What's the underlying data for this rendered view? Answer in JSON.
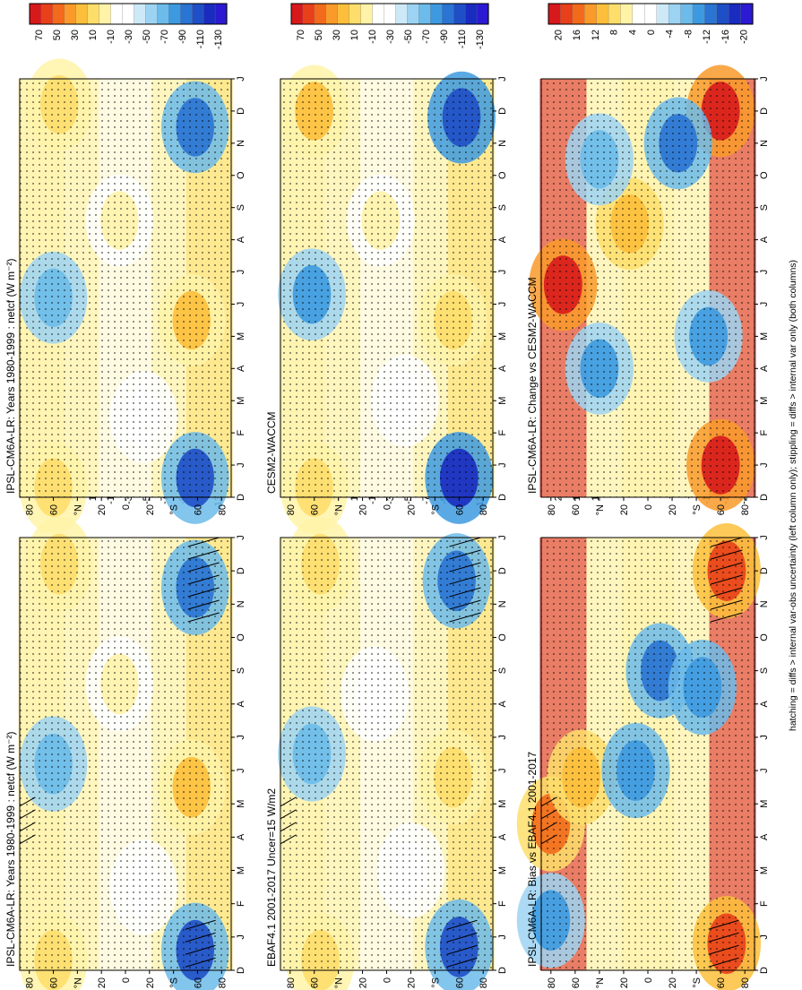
{
  "figure": {
    "footnote": "hatching = diffs > internal var-obs uncertainty (left column only); stippling = diffs > internal var only (both columns)"
  },
  "colorbars": {
    "absolute": {
      "labels": [
        "70",
        "50",
        "30",
        "10",
        "-10",
        "-30",
        "-50",
        "-70",
        "-90",
        "-110",
        "-130"
      ],
      "colors": [
        "#d7191c",
        "#e8401a",
        "#f26a1b",
        "#f99a2a",
        "#fdbf3b",
        "#fede6b",
        "#fff3a8",
        "#ffffff",
        "#ffffff",
        "#cde9f7",
        "#9dd3f2",
        "#6cbbea",
        "#3d9ae0",
        "#2a74d3",
        "#1f4fc6",
        "#1a2bc0",
        "#2b1ad2"
      ]
    },
    "difference": {
      "labels": [
        "20",
        "16",
        "12",
        "8",
        "4",
        "0",
        "-4",
        "-8",
        "-12",
        "-16",
        "-20"
      ],
      "colors": [
        "#d7191c",
        "#e8401a",
        "#f26a1b",
        "#f99a2a",
        "#fdbf3b",
        "#fede6b",
        "#fff3a8",
        "#ffffff",
        "#ffffff",
        "#cde9f7",
        "#9dd3f2",
        "#6cbbea",
        "#3d9ae0",
        "#2a74d3",
        "#1f4fc6",
        "#1a2bc0",
        "#2b1ad2"
      ]
    }
  },
  "axes": {
    "lat_ticks": [
      "80",
      "60",
      "°N",
      "20",
      "0",
      "20",
      "°S",
      "60",
      "80"
    ],
    "month_ticks": [
      "D",
      "J",
      "F",
      "M",
      "A",
      "M",
      "J",
      "J",
      "A",
      "S",
      "O",
      "N",
      "D",
      "J"
    ]
  },
  "chart_data": [
    {
      "type": "heatmap",
      "title": "IPSL-CM6A-LR: Years 1980-1999 : netcf (W m⁻²)",
      "variable": "netcf",
      "units": "W m-2",
      "colorbar": "absolute",
      "x": "month",
      "y": "latitude",
      "blobs": [
        {
          "m": 0.3,
          "lat": 60,
          "v": 55
        },
        {
          "m": 12.2,
          "lat": 55,
          "v": 50
        },
        {
          "m": 5.5,
          "lat": -55,
          "v": 60
        },
        {
          "m": 6.2,
          "lat": 60,
          "v": -55
        },
        {
          "m": 0.6,
          "lat": -58,
          "v": -95
        },
        {
          "m": 11.5,
          "lat": -58,
          "v": -85
        },
        {
          "m": 8.6,
          "lat": 5,
          "v": 25
        },
        {
          "m": 2.5,
          "lat": -15,
          "v": 12
        }
      ],
      "hatching": [
        {
          "m0": 0.3,
          "m1": 1.5,
          "lat0": -75,
          "lat1": -50
        },
        {
          "m0": 10.6,
          "m1": 13.0,
          "lat0": -78,
          "lat1": -52
        },
        {
          "m0": 4.0,
          "m1": 5.2,
          "lat0": 75,
          "lat1": 88
        }
      ]
    },
    {
      "type": "heatmap",
      "title": "IPSL-CM6A-LR: Years 1980-1999 : netcf (W m⁻²)",
      "variable": "netcf",
      "units": "W m-2",
      "colorbar": "absolute",
      "x": "month",
      "y": "latitude",
      "blobs": [
        {
          "m": 0.3,
          "lat": 60,
          "v": 55
        },
        {
          "m": 12.2,
          "lat": 55,
          "v": 50
        },
        {
          "m": 5.5,
          "lat": -55,
          "v": 60
        },
        {
          "m": 6.2,
          "lat": 60,
          "v": -55
        },
        {
          "m": 0.6,
          "lat": -58,
          "v": -95
        },
        {
          "m": 11.5,
          "lat": -58,
          "v": -85
        },
        {
          "m": 8.6,
          "lat": 5,
          "v": 25
        },
        {
          "m": 2.5,
          "lat": -15,
          "v": 12
        }
      ],
      "hatching": []
    },
    {
      "type": "heatmap",
      "title": "EBAF4.1 2001-2017 Uncer=15 W/m2",
      "variable": "netcf",
      "units": "W m-2",
      "colorbar": "absolute",
      "x": "month",
      "y": "latitude",
      "blobs": [
        {
          "m": 0.3,
          "lat": 55,
          "v": 50
        },
        {
          "m": 12.2,
          "lat": 55,
          "v": 45
        },
        {
          "m": 5.8,
          "lat": -55,
          "v": 55
        },
        {
          "m": 6.5,
          "lat": 62,
          "v": -55
        },
        {
          "m": 0.7,
          "lat": -60,
          "v": -95
        },
        {
          "m": 11.7,
          "lat": -58,
          "v": -90
        },
        {
          "m": 8.3,
          "lat": 10,
          "v": 20
        },
        {
          "m": 3.0,
          "lat": -20,
          "v": 15
        }
      ],
      "hatching": [
        {
          "m0": 0.3,
          "m1": 1.5,
          "lat0": -75,
          "lat1": -50
        },
        {
          "m0": 10.6,
          "m1": 13.0,
          "lat0": -78,
          "lat1": -52
        },
        {
          "m0": 4.0,
          "m1": 5.2,
          "lat0": 75,
          "lat1": 88
        }
      ]
    },
    {
      "type": "heatmap",
      "title": "CESM2-WACCM",
      "variable": "netcf",
      "units": "W m-2",
      "colorbar": "absolute",
      "x": "month",
      "y": "latitude",
      "blobs": [
        {
          "m": 0.3,
          "lat": 60,
          "v": 55
        },
        {
          "m": 12.0,
          "lat": 60,
          "v": 60
        },
        {
          "m": 5.5,
          "lat": -55,
          "v": 55
        },
        {
          "m": 6.3,
          "lat": 62,
          "v": -60
        },
        {
          "m": 0.6,
          "lat": -60,
          "v": -115
        },
        {
          "m": 11.8,
          "lat": -62,
          "v": -105
        },
        {
          "m": 8.6,
          "lat": 5,
          "v": 25
        },
        {
          "m": 3.0,
          "lat": -15,
          "v": 10
        }
      ],
      "hatching": []
    },
    {
      "type": "heatmap",
      "title": "IPSL-CM6A-LR: Bias vs EBAF4.1 2001-2017",
      "variable": "netcf",
      "units": "W m-2",
      "colorbar": "difference",
      "x": "month",
      "y": "latitude",
      "blobs": [
        {
          "m": 0.8,
          "lat": -65,
          "v": 20
        },
        {
          "m": 12.0,
          "lat": -65,
          "v": 20
        },
        {
          "m": 4.4,
          "lat": 80,
          "v": 16
        },
        {
          "m": 5.8,
          "lat": 55,
          "v": 12
        },
        {
          "m": 6.0,
          "lat": 10,
          "v": -12
        },
        {
          "m": 9.0,
          "lat": -10,
          "v": -14
        },
        {
          "m": 8.5,
          "lat": -45,
          "v": -12
        },
        {
          "m": 1.5,
          "lat": 80,
          "v": -10
        }
      ],
      "hatching": [
        {
          "m0": 0.3,
          "m1": 1.5,
          "lat0": -75,
          "lat1": -50
        },
        {
          "m0": 10.6,
          "m1": 13.0,
          "lat0": -78,
          "lat1": -52
        },
        {
          "m0": 4.0,
          "m1": 5.2,
          "lat0": 75,
          "lat1": 88
        }
      ]
    },
    {
      "type": "heatmap",
      "title": "IPSL-CM6A-LR: Change vs CESM2-WACCM",
      "variable": "netcf",
      "units": "W m-2",
      "colorbar": "difference",
      "x": "month",
      "y": "latitude",
      "blobs": [
        {
          "m": 1.0,
          "lat": -60,
          "v": 22
        },
        {
          "m": 12.0,
          "lat": -60,
          "v": 22
        },
        {
          "m": 6.6,
          "lat": 70,
          "v": 22
        },
        {
          "m": 8.5,
          "lat": 15,
          "v": 12
        },
        {
          "m": 5.0,
          "lat": -50,
          "v": -10
        },
        {
          "m": 4.0,
          "lat": 40,
          "v": -10
        },
        {
          "m": 10.5,
          "lat": 40,
          "v": -8
        },
        {
          "m": 11.0,
          "lat": -25,
          "v": -14
        }
      ],
      "hatching": []
    }
  ]
}
